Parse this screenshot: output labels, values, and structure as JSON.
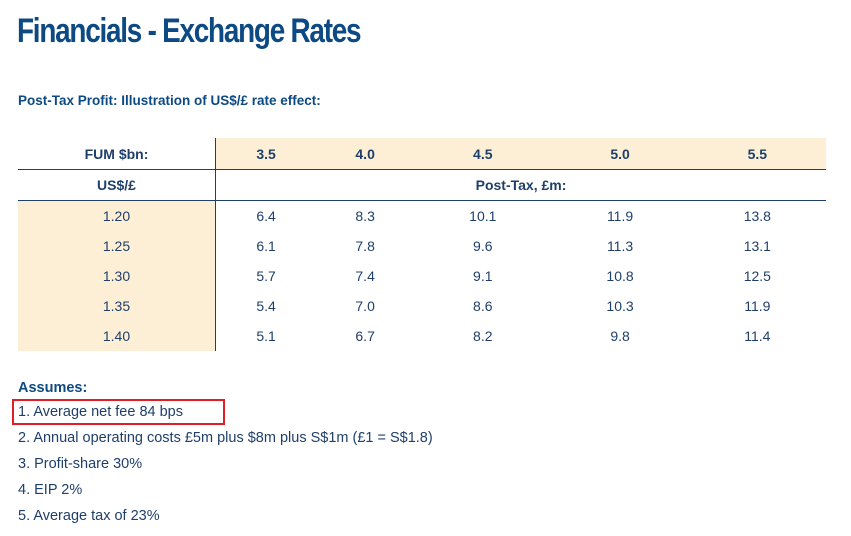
{
  "title": "Financials - Exchange Rates",
  "subtitle": "Post-Tax Profit: Illustration of US$/£ rate effect:",
  "table": {
    "fum_label": "FUM $bn:",
    "fum_values": [
      "3.5",
      "4.0",
      "4.5",
      "5.0",
      "5.5"
    ],
    "rate_label": "US$/£",
    "values_label": "Post-Tax, £m:",
    "rows": [
      {
        "rate": "1.20",
        "values": [
          "6.4",
          "8.3",
          "10.1",
          "11.9",
          "13.8"
        ]
      },
      {
        "rate": "1.25",
        "values": [
          "6.1",
          "7.8",
          "9.6",
          "11.3",
          "13.1"
        ]
      },
      {
        "rate": "1.30",
        "values": [
          "5.7",
          "7.4",
          "9.1",
          "10.8",
          "12.5"
        ]
      },
      {
        "rate": "1.35",
        "values": [
          "5.4",
          "7.0",
          "8.6",
          "10.3",
          "11.9"
        ]
      },
      {
        "rate": "1.40",
        "values": [
          "5.1",
          "6.7",
          "8.2",
          "9.8",
          "11.4"
        ]
      }
    ]
  },
  "assumptions": {
    "heading": "Assumes:",
    "items": [
      "1. Average net fee 84 bps",
      "2. Annual operating costs £5m plus $8m plus S$1m (£1 = S$1.8)",
      "3. Profit-share 30%",
      "4. EIP 2%",
      "5. Average tax of 23%"
    ]
  },
  "colors": {
    "title": "#0d4a83",
    "text": "#1f3f6a",
    "header_fill": "#fcefd6",
    "highlight_border": "#e11d25"
  }
}
